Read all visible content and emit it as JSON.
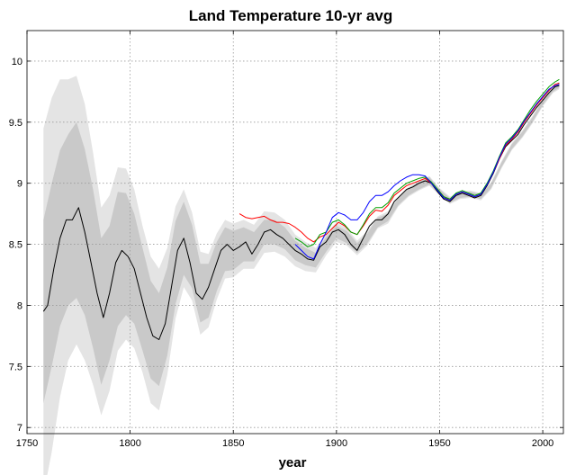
{
  "chart_data": {
    "type": "line",
    "title": "Land Temperature 10-yr avg",
    "xlabel": "year",
    "ylabel": "",
    "xlim": [
      1750,
      2010
    ],
    "ylim": [
      6.95,
      10.25
    ],
    "xticks": [
      1750,
      1800,
      1850,
      1900,
      1950,
      2000
    ],
    "yticks": [
      7,
      7.5,
      8,
      8.5,
      9,
      9.5,
      10
    ],
    "xtick_labels": [
      "1750",
      "1800",
      "1850",
      "1900",
      "1950",
      "2000"
    ],
    "ytick_labels": [
      "7",
      "7.5",
      "8",
      "8.5",
      "9",
      "9.5",
      "10"
    ],
    "grid": true,
    "legend": null,
    "colors": {
      "black": "#000000",
      "red": "#ff0000",
      "green": "#00a000",
      "blue": "#0000ff",
      "band_outer": "#e4e4e4",
      "band_inner": "#c9c9c9"
    },
    "series": [
      {
        "color": "black",
        "x": [
          1758,
          1760,
          1763,
          1766,
          1769,
          1772,
          1775,
          1778,
          1781,
          1784,
          1787,
          1790,
          1793,
          1796,
          1799,
          1802,
          1805,
          1808,
          1811,
          1814,
          1817,
          1820,
          1823,
          1826,
          1829,
          1832,
          1835,
          1838,
          1841,
          1844,
          1847,
          1850,
          1853,
          1856,
          1859,
          1862,
          1865,
          1868,
          1871,
          1874,
          1877,
          1880,
          1883,
          1886,
          1889,
          1892,
          1895,
          1898,
          1901,
          1904,
          1907,
          1910,
          1913,
          1916,
          1919,
          1922,
          1925,
          1928,
          1931,
          1934,
          1937,
          1940,
          1943,
          1946,
          1949,
          1952,
          1955,
          1958,
          1961,
          1964,
          1967,
          1970,
          1973,
          1976,
          1979,
          1982,
          1985,
          1988,
          1991,
          1994,
          1997,
          2000,
          2003,
          2006,
          2008
        ],
        "y": [
          7.95,
          8.0,
          8.3,
          8.55,
          8.7,
          8.7,
          8.8,
          8.6,
          8.35,
          8.1,
          7.9,
          8.1,
          8.35,
          8.45,
          8.4,
          8.3,
          8.1,
          7.9,
          7.75,
          7.72,
          7.85,
          8.15,
          8.45,
          8.55,
          8.35,
          8.1,
          8.05,
          8.15,
          8.3,
          8.45,
          8.5,
          8.45,
          8.48,
          8.52,
          8.42,
          8.5,
          8.6,
          8.62,
          8.58,
          8.55,
          8.5,
          8.45,
          8.42,
          8.38,
          8.37,
          8.48,
          8.52,
          8.6,
          8.62,
          8.58,
          8.5,
          8.45,
          8.55,
          8.65,
          8.7,
          8.7,
          8.75,
          8.85,
          8.9,
          8.95,
          8.97,
          9.0,
          9.02,
          9.0,
          8.93,
          8.87,
          8.85,
          8.9,
          8.92,
          8.9,
          8.88,
          8.9,
          8.98,
          9.08,
          9.2,
          9.3,
          9.35,
          9.4,
          9.48,
          9.55,
          9.62,
          9.68,
          9.74,
          9.79,
          9.8
        ]
      },
      {
        "color": "red",
        "x": [
          1853,
          1856,
          1859,
          1862,
          1865,
          1868,
          1871,
          1874,
          1877,
          1880,
          1883,
          1886,
          1889,
          1892,
          1895,
          1898,
          1901,
          1904,
          1907,
          1910,
          1913,
          1916,
          1919,
          1922,
          1925,
          1928,
          1931,
          1934,
          1937,
          1940,
          1943,
          1946,
          1949,
          1952,
          1955,
          1958,
          1961,
          1964,
          1967,
          1970,
          1973,
          1976,
          1979,
          1982,
          1985,
          1988,
          1991,
          1994,
          1997,
          2000,
          2003,
          2006,
          2008
        ],
        "y": [
          8.75,
          8.72,
          8.71,
          8.72,
          8.73,
          8.7,
          8.68,
          8.68,
          8.67,
          8.64,
          8.6,
          8.55,
          8.52,
          8.56,
          8.58,
          8.63,
          8.68,
          8.65,
          8.6,
          8.58,
          8.65,
          8.73,
          8.78,
          8.77,
          8.82,
          8.9,
          8.94,
          8.98,
          9.0,
          9.02,
          9.04,
          9.0,
          8.95,
          8.89,
          8.86,
          8.91,
          8.93,
          8.91,
          8.89,
          8.91,
          8.99,
          9.09,
          9.2,
          9.31,
          9.36,
          9.42,
          9.5,
          9.57,
          9.64,
          9.7,
          9.76,
          9.81,
          9.82
        ]
      },
      {
        "color": "green",
        "x": [
          1880,
          1883,
          1886,
          1889,
          1892,
          1895,
          1898,
          1901,
          1904,
          1907,
          1910,
          1913,
          1916,
          1919,
          1922,
          1925,
          1928,
          1931,
          1934,
          1937,
          1940,
          1943,
          1946,
          1949,
          1952,
          1955,
          1958,
          1961,
          1964,
          1967,
          1970,
          1973,
          1976,
          1979,
          1982,
          1985,
          1988,
          1991,
          1994,
          1997,
          2000,
          2003,
          2006,
          2008
        ],
        "y": [
          8.55,
          8.52,
          8.48,
          8.5,
          8.58,
          8.6,
          8.68,
          8.7,
          8.66,
          8.6,
          8.58,
          8.66,
          8.75,
          8.8,
          8.8,
          8.84,
          8.92,
          8.96,
          9.0,
          9.02,
          9.04,
          9.05,
          9.01,
          8.95,
          8.89,
          8.87,
          8.92,
          8.94,
          8.92,
          8.9,
          8.92,
          9.0,
          9.1,
          9.22,
          9.33,
          9.38,
          9.44,
          9.52,
          9.6,
          9.67,
          9.73,
          9.79,
          9.83,
          9.85
        ]
      },
      {
        "color": "blue",
        "x": [
          1880,
          1883,
          1886,
          1889,
          1892,
          1895,
          1898,
          1901,
          1904,
          1907,
          1910,
          1913,
          1916,
          1919,
          1922,
          1925,
          1928,
          1931,
          1934,
          1937,
          1940,
          1943,
          1946,
          1949,
          1952,
          1955,
          1958,
          1961,
          1964,
          1967,
          1970,
          1973,
          1976,
          1979,
          1982,
          1985,
          1988,
          1991,
          1994,
          1997,
          2000,
          2003,
          2006,
          2008
        ],
        "y": [
          8.5,
          8.45,
          8.4,
          8.38,
          8.5,
          8.6,
          8.72,
          8.76,
          8.74,
          8.7,
          8.7,
          8.76,
          8.85,
          8.9,
          8.9,
          8.93,
          8.98,
          9.02,
          9.05,
          9.07,
          9.07,
          9.06,
          9.0,
          8.94,
          8.88,
          8.86,
          8.91,
          8.93,
          8.91,
          8.89,
          8.91,
          8.99,
          9.09,
          9.21,
          9.32,
          9.37,
          9.43,
          9.51,
          9.58,
          9.65,
          9.71,
          9.77,
          9.8,
          9.81
        ]
      }
    ],
    "uncertainty_bands": {
      "x": [
        1758,
        1762,
        1766,
        1770,
        1774,
        1778,
        1782,
        1786,
        1790,
        1794,
        1798,
        1802,
        1806,
        1810,
        1814,
        1818,
        1822,
        1826,
        1830,
        1834,
        1838,
        1842,
        1846,
        1850,
        1855,
        1860,
        1865,
        1870,
        1875,
        1880,
        1885,
        1890,
        1895,
        1900,
        1905,
        1910,
        1915,
        1920,
        1925,
        1930,
        1935,
        1940,
        1945,
        1950,
        1955,
        1960,
        1965,
        1970,
        1975,
        1980,
        1985,
        1990,
        1995,
        2000,
        2005,
        2008
      ],
      "center": [
        7.95,
        8.25,
        8.55,
        8.7,
        8.78,
        8.6,
        8.3,
        7.95,
        8.1,
        8.38,
        8.42,
        8.3,
        8.05,
        7.8,
        7.72,
        7.95,
        8.35,
        8.55,
        8.4,
        8.1,
        8.12,
        8.32,
        8.46,
        8.45,
        8.5,
        8.48,
        8.6,
        8.6,
        8.55,
        8.45,
        8.4,
        8.37,
        8.5,
        8.6,
        8.56,
        8.47,
        8.55,
        8.68,
        8.72,
        8.85,
        8.93,
        8.98,
        9.02,
        8.93,
        8.86,
        8.9,
        8.91,
        8.89,
        8.98,
        9.15,
        9.3,
        9.4,
        9.52,
        9.66,
        9.77,
        9.8
      ],
      "inner_halfwidth": [
        0.75,
        0.75,
        0.72,
        0.7,
        0.72,
        0.68,
        0.65,
        0.6,
        0.55,
        0.55,
        0.5,
        0.45,
        0.42,
        0.4,
        0.38,
        0.36,
        0.34,
        0.3,
        0.26,
        0.24,
        0.22,
        0.2,
        0.18,
        0.16,
        0.14,
        0.12,
        0.1,
        0.1,
        0.09,
        0.08,
        0.07,
        0.06,
        0.06,
        0.05,
        0.05,
        0.04,
        0.04,
        0.04,
        0.03,
        0.03,
        0.03,
        0.03,
        0.03,
        0.02,
        0.02,
        0.02,
        0.02,
        0.02,
        0.02,
        0.02,
        0.02,
        0.02,
        0.02,
        0.02,
        0.02,
        0.02
      ],
      "outer_halfwidth": [
        1.5,
        1.45,
        1.3,
        1.15,
        1.1,
        1.05,
        0.95,
        0.85,
        0.8,
        0.75,
        0.7,
        0.65,
        0.6,
        0.6,
        0.58,
        0.52,
        0.46,
        0.4,
        0.36,
        0.34,
        0.3,
        0.27,
        0.24,
        0.22,
        0.2,
        0.18,
        0.17,
        0.16,
        0.15,
        0.13,
        0.12,
        0.1,
        0.09,
        0.08,
        0.07,
        0.06,
        0.06,
        0.05,
        0.05,
        0.04,
        0.04,
        0.04,
        0.04,
        0.03,
        0.03,
        0.03,
        0.03,
        0.03,
        0.03,
        0.03,
        0.03,
        0.03,
        0.03,
        0.03,
        0.03,
        0.03
      ]
    }
  }
}
